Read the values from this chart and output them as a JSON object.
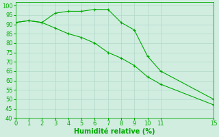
{
  "line1_x": [
    0,
    1,
    2,
    3,
    4,
    5,
    6,
    7,
    8,
    9,
    10,
    11,
    15
  ],
  "line1_y": [
    91,
    92,
    91,
    96,
    97,
    97,
    98,
    98,
    91,
    87,
    73,
    65,
    50
  ],
  "line2_x": [
    0,
    1,
    2,
    3,
    4,
    5,
    6,
    7,
    8,
    9,
    10,
    11,
    15
  ],
  "line2_y": [
    91,
    92,
    91,
    88,
    85,
    83,
    80,
    75,
    72,
    68,
    62,
    58,
    47
  ],
  "line_color": "#00aa00",
  "bg_color": "#d0ede0",
  "grid_color": "#b0d8c8",
  "xlabel": "Humidité relative (%)",
  "xlim": [
    0,
    15
  ],
  "ylim": [
    40,
    102
  ],
  "yticks": [
    40,
    45,
    50,
    55,
    60,
    65,
    70,
    75,
    80,
    85,
    90,
    95,
    100
  ],
  "xticks": [
    0,
    1,
    2,
    3,
    4,
    5,
    6,
    7,
    8,
    9,
    10,
    11,
    15
  ],
  "xlabel_fontsize": 7,
  "tick_fontsize": 6
}
